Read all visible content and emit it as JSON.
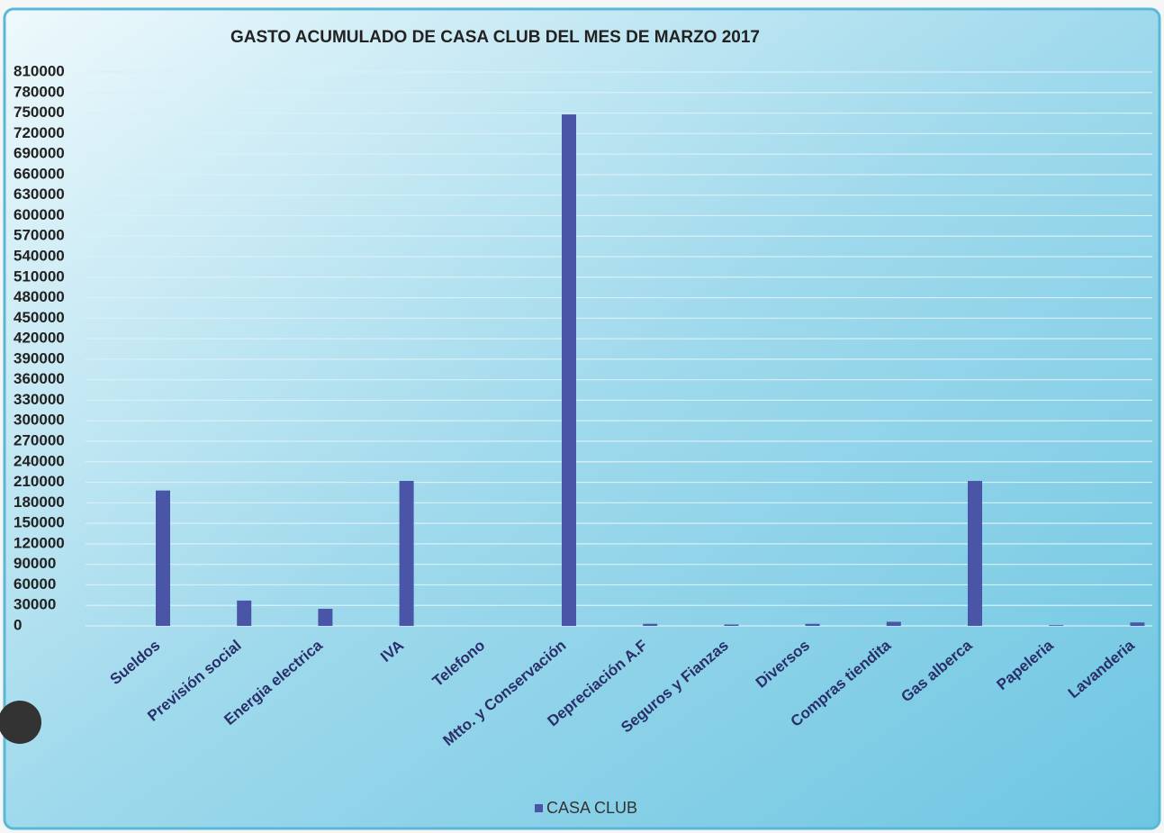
{
  "chart_data": {
    "type": "bar",
    "title": "GASTO ACUMULADO DE CASA CLUB DEL MES DE MARZO 2017",
    "categories": [
      "Sueldos",
      "Previsión social",
      "Energia electrica",
      "IVA",
      "Telefono",
      "Mtto. y Conservación",
      "Depreciación A.F",
      "Seguros y Fianzas",
      "Diversos",
      "Compras tiendita",
      "Gas alberca",
      "Papeleria",
      "Lavanderia"
    ],
    "series": [
      {
        "name": "CASA CLUB",
        "color": "#4a55a8",
        "values": [
          198000,
          37000,
          25000,
          212000,
          0,
          748000,
          3000,
          2000,
          3000,
          6000,
          212000,
          1000,
          5000
        ]
      }
    ],
    "ylim": [
      0,
      810000
    ],
    "yticks": [
      0,
      30000,
      60000,
      90000,
      120000,
      150000,
      180000,
      210000,
      240000,
      270000,
      300000,
      330000,
      360000,
      390000,
      420000,
      450000,
      480000,
      510000,
      540000,
      570000,
      600000,
      630000,
      660000,
      690000,
      720000,
      750000,
      780000,
      810000
    ],
    "grid": true,
    "legend": "bottom"
  }
}
